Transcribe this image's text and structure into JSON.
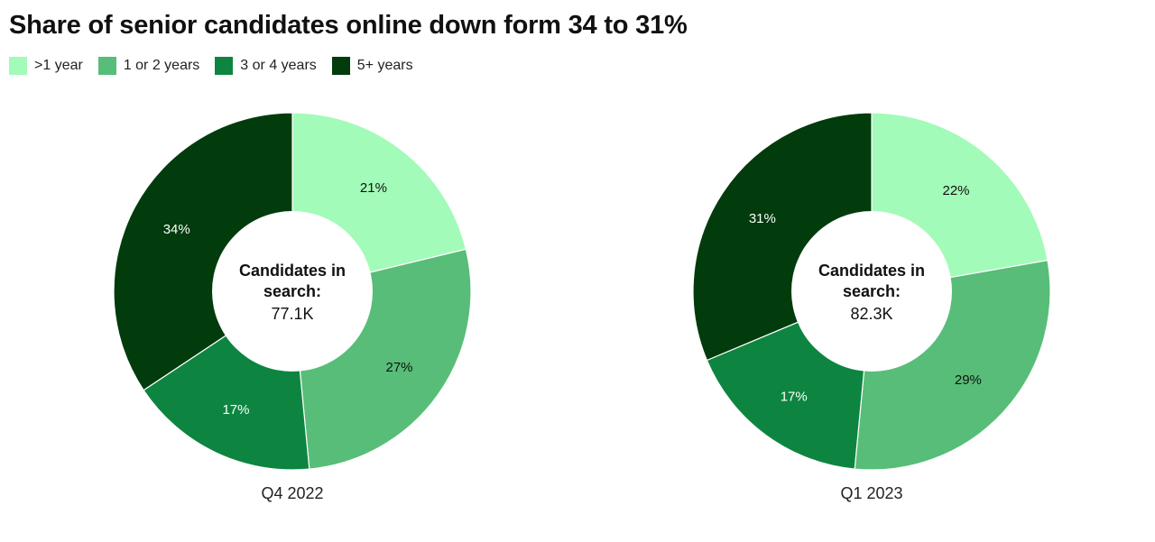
{
  "title": "Share of senior candidates online down form 34 to 31%",
  "legend": [
    {
      "label": ">1 year",
      "color": "#a2fbb8"
    },
    {
      "label": "1 or 2 years",
      "color": "#58bd78"
    },
    {
      "label": "3 or 4 years",
      "color": "#0d8540"
    },
    {
      "label": "5+ years",
      "color": "#023b0c"
    }
  ],
  "chart_data": [
    {
      "type": "pie",
      "caption": "Q4 2022",
      "center_label_line1": "Candidates in",
      "center_label_line2": "search:",
      "center_value": "77.1K",
      "categories": [
        ">1 year",
        "1 or 2 years",
        "3 or 4 years",
        "5+ years"
      ],
      "values": [
        21,
        27,
        17,
        34
      ],
      "value_labels": [
        "21%",
        "27%",
        "17%",
        "34%"
      ]
    },
    {
      "type": "pie",
      "caption": "Q1 2023",
      "center_label_line1": "Candidates in",
      "center_label_line2": "search:",
      "center_value": "82.3K",
      "categories": [
        ">1 year",
        "1 or 2 years",
        "3 or 4 years",
        "5+ years"
      ],
      "values": [
        22,
        29,
        17,
        31
      ],
      "value_labels": [
        "22%",
        "29%",
        "17%",
        "31%"
      ]
    }
  ]
}
